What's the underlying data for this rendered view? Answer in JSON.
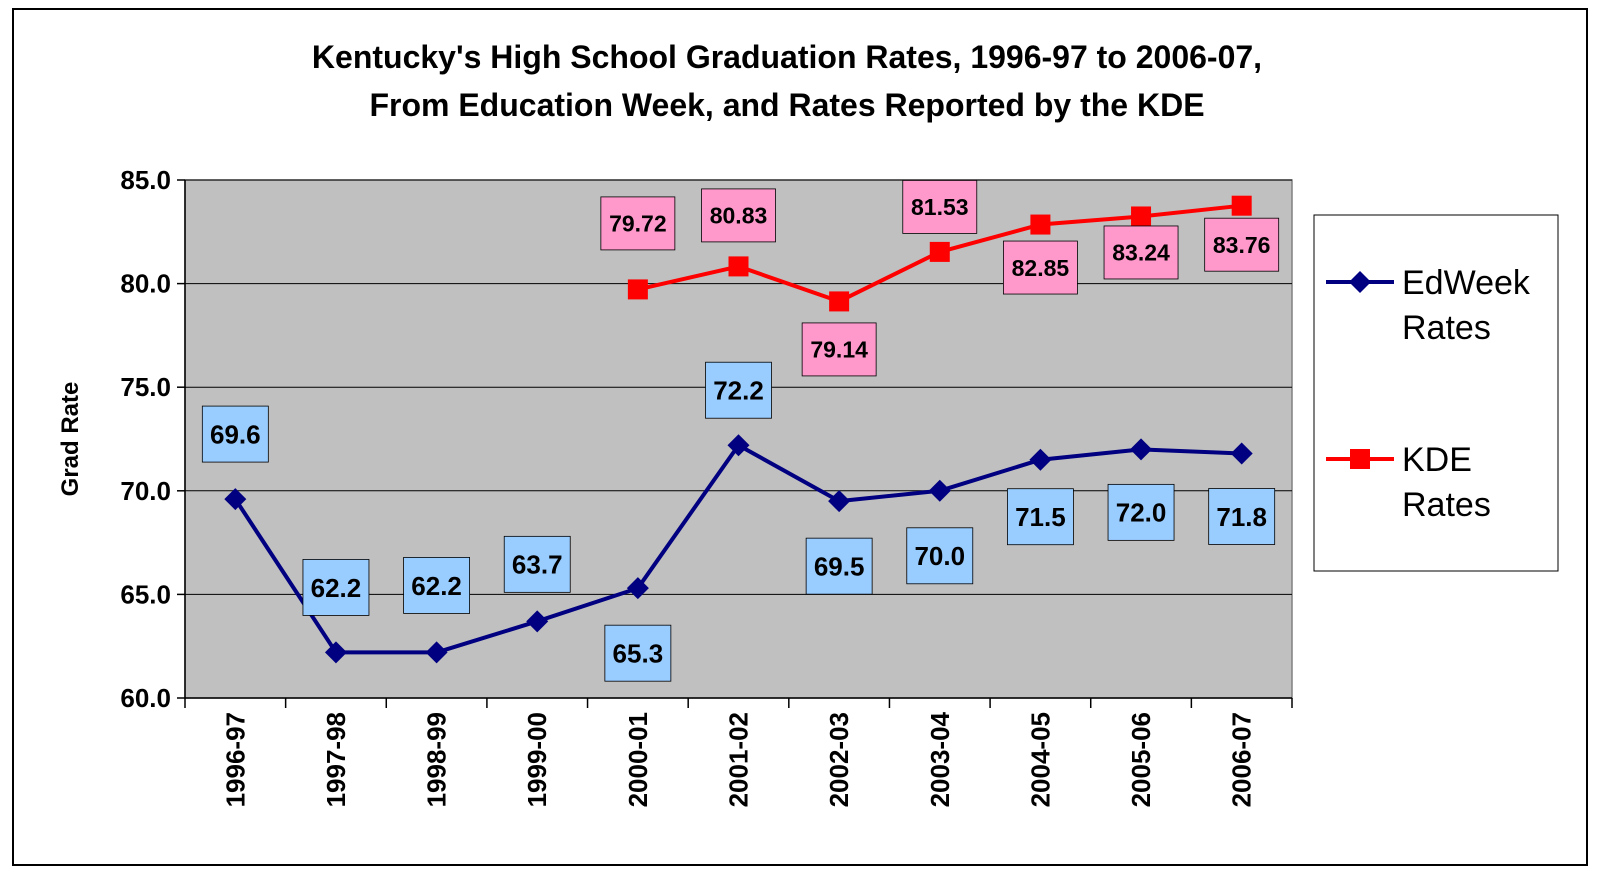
{
  "chart_data": {
    "type": "line",
    "title_lines": [
      "Kentucky's High School Graduation Rates, 1996-97 to 2006-07,",
      "From Education Week, and Rates Reported by the KDE"
    ],
    "ylabel": "Grad Rate",
    "xlabel": "",
    "ylim": [
      60,
      85
    ],
    "yticks": [
      "60.0",
      "65.0",
      "70.0",
      "75.0",
      "80.0",
      "85.0"
    ],
    "grid": true,
    "legend_position": "right",
    "categories": [
      "1996-97",
      "1997-98",
      "1998-99",
      "1999-00",
      "2000-01",
      "2001-02",
      "2002-03",
      "2003-04",
      "2004-05",
      "2005-06",
      "2006-07"
    ],
    "series": [
      {
        "name": "EdWeek Rates",
        "legend_lines": [
          "EdWeek",
          "Rates"
        ],
        "color": "#000080",
        "marker": "diamond",
        "label_bg": "#99ccff",
        "values": [
          69.6,
          62.2,
          62.2,
          63.7,
          65.3,
          72.2,
          69.5,
          70.0,
          71.5,
          72.0,
          71.8
        ],
        "labels": [
          "69.6",
          "62.2",
          "62.2",
          "63.7",
          "65.3",
          "72.2",
          "69.5",
          "70.0",
          "71.5",
          "72.0",
          "71.8"
        ]
      },
      {
        "name": "KDE Rates",
        "legend_lines": [
          "KDE",
          "Rates"
        ],
        "color": "#ff0000",
        "marker": "square",
        "label_bg": "#ff99cc",
        "values": [
          null,
          null,
          null,
          null,
          79.72,
          80.83,
          79.14,
          81.53,
          82.85,
          83.24,
          83.76
        ],
        "labels": [
          null,
          null,
          null,
          null,
          "79.72",
          "80.83",
          "79.14",
          "81.53",
          "82.85",
          "83.24",
          "83.76"
        ]
      }
    ],
    "plot_background": "#c0c0c0"
  }
}
